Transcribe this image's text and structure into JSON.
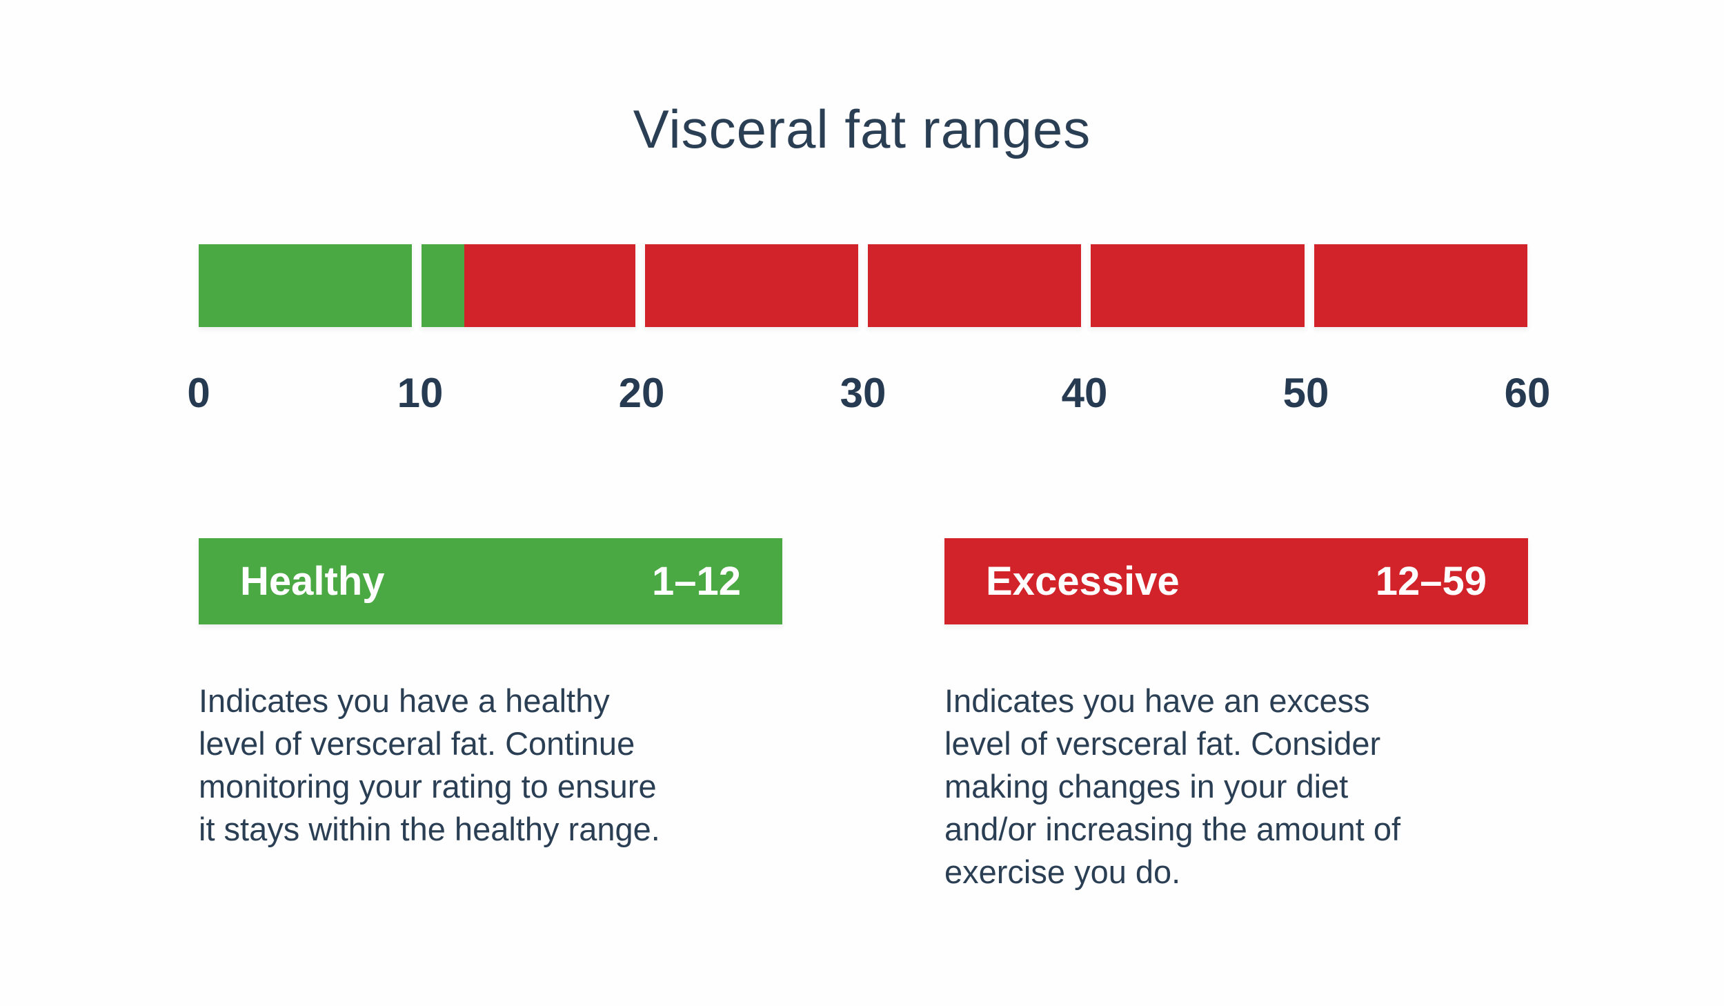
{
  "title": "Visceral fat ranges",
  "colors": {
    "healthy_green": "#4aa943",
    "excessive_red": "#d2232a",
    "text_navy": "#2a3e54",
    "background": "#fefefe"
  },
  "chart_data": {
    "type": "range-bar",
    "title": "Visceral fat ranges",
    "axis": {
      "min": 0,
      "max": 60,
      "tick_interval": 10,
      "tick_labels": [
        "0",
        "10",
        "20",
        "30",
        "40",
        "50",
        "60"
      ]
    },
    "ranges": [
      {
        "name": "Healthy",
        "label": "1–12",
        "from": 1,
        "to": 12,
        "color": "#4aa943"
      },
      {
        "name": "Excessive",
        "label": "12–59",
        "from": 12,
        "to": 59,
        "color": "#d2232a"
      }
    ],
    "layout_hint": "single horizontal bar split into six decade blocks with white gaps; green up to value 12, red beyond; tick labels centered under block boundaries"
  },
  "cards": [
    {
      "label": "Healthy",
      "range": "1–12",
      "color": "#4aa943",
      "description": "Indicates you have a healthy\nlevel of versceral fat. Continue\nmonitoring your rating to ensure\nit stays within the healthy range."
    },
    {
      "label": "Excessive",
      "range": "12–59",
      "color": "#d2232a",
      "description": "Indicates you have an excess\nlevel of versceral fat. Consider\nmaking changes in your diet\nand/or increasing the amount of\nexercise you do."
    }
  ]
}
